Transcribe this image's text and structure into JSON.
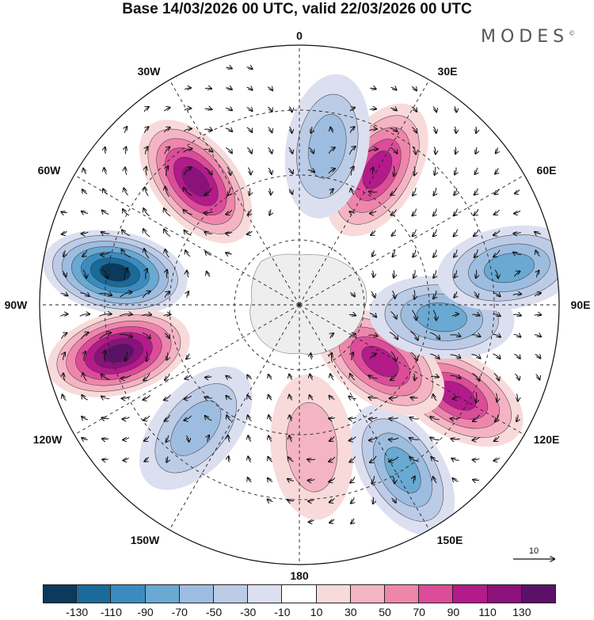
{
  "title": "Base 14/03/2026 00 UTC, valid 22/03/2026 00 UTC",
  "brand": "MODES",
  "brand_mark": "©",
  "longitude_labels": {
    "top": "0",
    "e30": "30E",
    "e60": "60E",
    "e90": "90E",
    "e120": "120E",
    "e150": "150E",
    "bottom": "180",
    "w150": "150W",
    "w120": "120W",
    "w90": "90W",
    "w60": "60W",
    "w30": "30W"
  },
  "vector_scale": {
    "label": "10"
  },
  "colorbar": {
    "colors": [
      "#0b3a5c",
      "#1a6a9a",
      "#3a8cc0",
      "#69a9d2",
      "#9dbde0",
      "#bccbe6",
      "#dcdff0",
      "#ffffff",
      "#f8dada",
      "#f4b4c4",
      "#ee86ac",
      "#dc4c99",
      "#b31a8a",
      "#8a127a",
      "#5c1169"
    ],
    "ticks": [
      "-130",
      "-110",
      "-90",
      "-70",
      "-50",
      "-30",
      "-10",
      "10",
      "30",
      "50",
      "70",
      "90",
      "110",
      "130"
    ]
  },
  "anomaly_features": [
    {
      "sign": "positive",
      "level": 110,
      "lon": -40,
      "colat": 0.62
    },
    {
      "sign": "negative",
      "level": -130,
      "lon": -80,
      "colat": 0.72
    },
    {
      "sign": "positive",
      "level": 130,
      "lon": -105,
      "colat": 0.72
    },
    {
      "sign": "negative",
      "level": -50,
      "lon": -140,
      "colat": 0.62
    },
    {
      "sign": "positive",
      "level": 30,
      "lon": 175,
      "colat": 0.55
    },
    {
      "sign": "negative",
      "level": -70,
      "lon": 148,
      "colat": 0.75
    },
    {
      "sign": "positive",
      "level": 90,
      "lon": 120,
      "colat": 0.7
    },
    {
      "sign": "positive",
      "level": 90,
      "lon": 125,
      "colat": 0.38
    },
    {
      "sign": "negative",
      "level": -70,
      "lon": 95,
      "colat": 0.55
    },
    {
      "sign": "negative",
      "level": -70,
      "lon": 80,
      "colat": 0.82
    },
    {
      "sign": "positive",
      "level": 90,
      "lon": 30,
      "colat": 0.6
    },
    {
      "sign": "negative",
      "level": -50,
      "lon": 10,
      "colat": 0.62
    }
  ]
}
